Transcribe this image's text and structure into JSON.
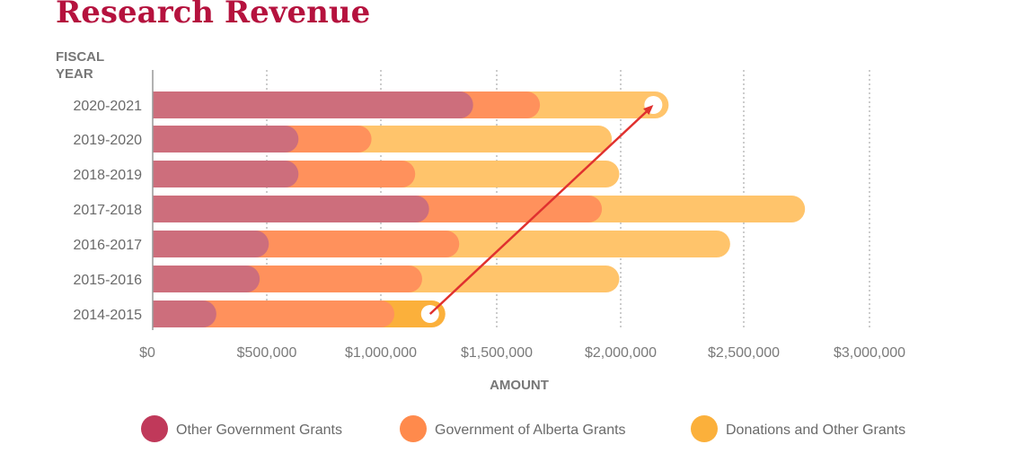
{
  "chart_data": {
    "type": "bar",
    "orientation": "horizontal",
    "stacked": true,
    "title": "Research Revenue",
    "xlabel": "AMOUNT",
    "ylabel": "FISCAL YEAR",
    "xlim": [
      0,
      3000000
    ],
    "x_ticks": [
      "$0",
      "$500,000",
      "$1,000,000",
      "$1,500,000",
      "$2,000,000",
      "$2,500,000",
      "$3,000,000"
    ],
    "grid": "vertical dotted",
    "legend": "bottom",
    "categories": [
      "2020-2021",
      "2019-2020",
      "2018-2019",
      "2017-2018",
      "2016-2017",
      "2015-2016",
      "2014-2015"
    ],
    "series": [
      {
        "name": "Other Government Grants",
        "color": "#c0395a",
        "bar_color": "#cd6e7c",
        "values": [
          1340000,
          580000,
          580000,
          1150000,
          450000,
          410000,
          220000
        ]
      },
      {
        "name": "Government of Alberta Grants",
        "color": "#ff8a4c",
        "bar_color": "#ff915c",
        "values": [
          280000,
          320000,
          510000,
          720000,
          830000,
          710000,
          780000
        ]
      },
      {
        "name": "Donations and Other Grants",
        "color": "#fbb03b",
        "bar_color": "#ffc46b",
        "values": [
          520000,
          1010000,
          850000,
          820000,
          1110000,
          820000,
          220000
        ]
      }
    ],
    "annotation": {
      "type": "arrow",
      "from": "2014-2015",
      "to": "2020-2021",
      "color": "#e0312f"
    }
  }
}
